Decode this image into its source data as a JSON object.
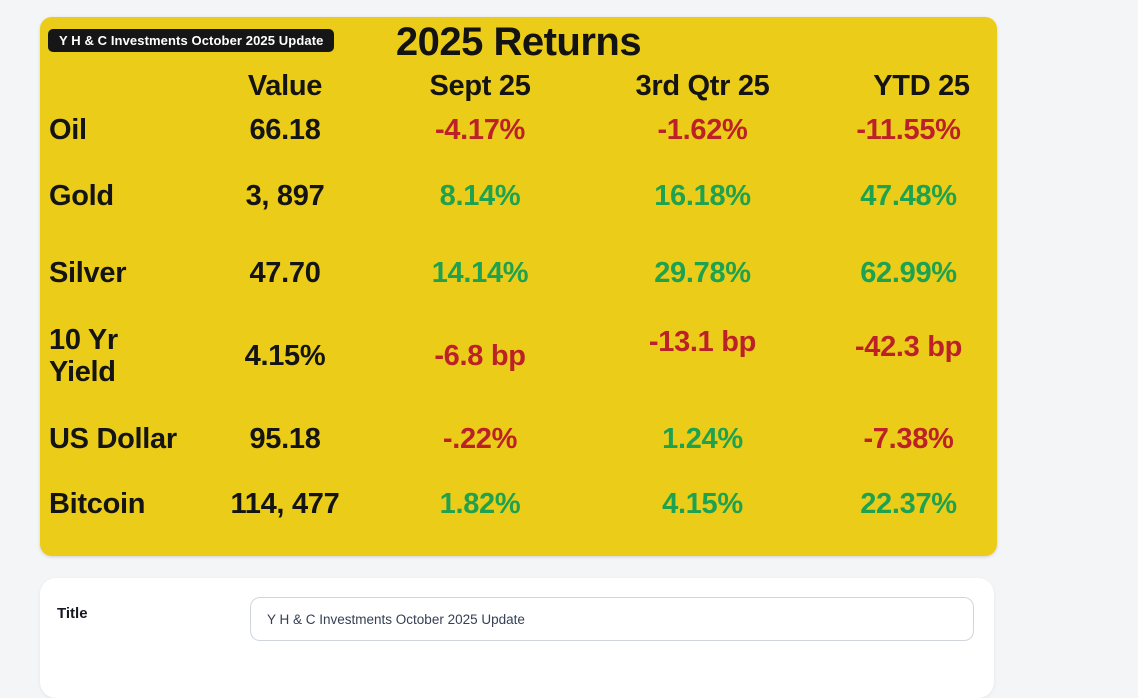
{
  "page": {
    "background": "#f4f5f7"
  },
  "board": {
    "background": "#ebcc19",
    "badge_label": "Y H & C Investments October 2025 Update",
    "title": "2025 Returns",
    "columns": {
      "value": "Value",
      "sept": "Sept 25",
      "qtr": "3rd Qtr 25",
      "ytd": "YTD 25"
    },
    "colors": {
      "negative": "#bb2127",
      "positive": "#1fa24f",
      "text": "#141414"
    },
    "rows": [
      {
        "label": "Oil",
        "value": "66.18",
        "sept": {
          "text": "-4.17%",
          "tone": "neg"
        },
        "qtr": {
          "text": "-1.62%",
          "tone": "neg"
        },
        "ytd": {
          "text": "-11.55%",
          "tone": "neg"
        }
      },
      {
        "label": "Gold",
        "value": "3, 897",
        "sept": {
          "text": "8.14%",
          "tone": "pos"
        },
        "qtr": {
          "text": "16.18%",
          "tone": "pos"
        },
        "ytd": {
          "text": "47.48%",
          "tone": "pos"
        }
      },
      {
        "label": "Silver",
        "value": "47.70",
        "sept": {
          "text": "14.14%",
          "tone": "pos"
        },
        "qtr": {
          "text": "29.78%",
          "tone": "pos"
        },
        "ytd": {
          "text": "62.99%",
          "tone": "pos"
        }
      },
      {
        "label": "10 Yr\nYield",
        "value": "4.15%",
        "sept": {
          "text": "-6.8 bp",
          "tone": "neg"
        },
        "qtr": {
          "text": "-13.1 bp",
          "tone": "neg"
        },
        "ytd": {
          "text": "-42.3 bp",
          "tone": "neg"
        }
      },
      {
        "label": "US Dollar",
        "value": "95.18",
        "sept": {
          "text": "-.22%",
          "tone": "neg"
        },
        "qtr": {
          "text": "1.24%",
          "tone": "pos"
        },
        "ytd": {
          "text": "-7.38%",
          "tone": "neg"
        }
      },
      {
        "label": "Bitcoin",
        "value": "114, 477",
        "sept": {
          "text": "1.82%",
          "tone": "pos"
        },
        "qtr": {
          "text": "4.15%",
          "tone": "pos"
        },
        "ytd": {
          "text": "22.37%",
          "tone": "pos"
        }
      }
    ]
  },
  "form": {
    "title_label": "Title",
    "title_value": "Y H & C Investments October 2025 Update"
  }
}
